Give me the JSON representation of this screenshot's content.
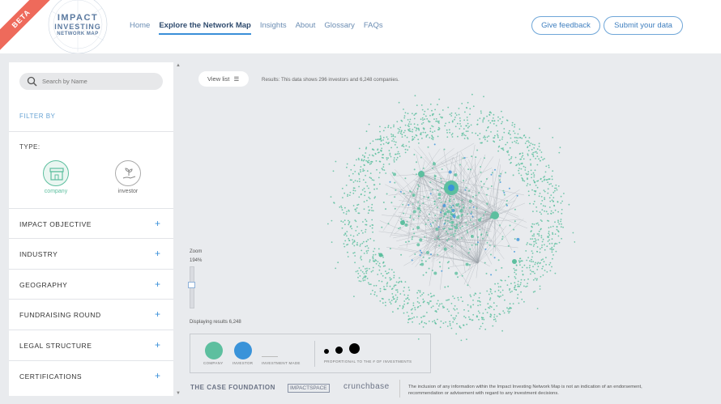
{
  "header": {
    "beta": "BETA",
    "logo_line1": "IMPACT",
    "logo_line2": "INVESTING",
    "logo_line3": "NETWORK MAP",
    "nav": [
      "Home",
      "Explore the Network Map",
      "Insights",
      "About",
      "Glossary",
      "FAQs"
    ],
    "active_nav": "Explore the Network Map",
    "feedback_button": "Give feedback",
    "submit_button": "Submit your data"
  },
  "sidebar": {
    "search_placeholder": "Search by Name",
    "filter_by": "FILTER BY",
    "type_label": "TYPE:",
    "types": [
      "company",
      "investor"
    ],
    "accordions": [
      "IMPACT OBJECTIVE",
      "INDUSTRY",
      "GEOGRAPHY",
      "FUNDRAISING ROUND",
      "LEGAL STRUCTURE",
      "CERTIFICATIONS"
    ]
  },
  "main": {
    "view_list": "View list",
    "results_text": "Results: This data shows 296 investors and 6,248 companies.",
    "zoom_label": "Zoom",
    "zoom_value": "194%",
    "displaying": "Displaying results 6,248"
  },
  "legend": {
    "company": "COMPANY",
    "investor": "INVESTOR",
    "investment_made": "INVESTMENT MADE",
    "proportional": "PROPORTIONAL TO THE # OF INVESTMENTS",
    "company_color": "#5dbf9f",
    "investor_color": "#3a93d9"
  },
  "footer": {
    "case_foundation": "THE CASE FOUNDATION",
    "impactspace": "IMPACTSPACE",
    "crunchbase": "crunchbase",
    "disclaimer": "The inclusion of any information within the Impact Investing Network Map is not an indication of an endorsement, recommendation or advisement with regard to any investment decisions."
  },
  "colors": {
    "accent": "#3a8fd8",
    "company_node": "#5dbf9f",
    "investor_node": "#3a93d9",
    "beta_ribbon": "#ee6a5b"
  }
}
